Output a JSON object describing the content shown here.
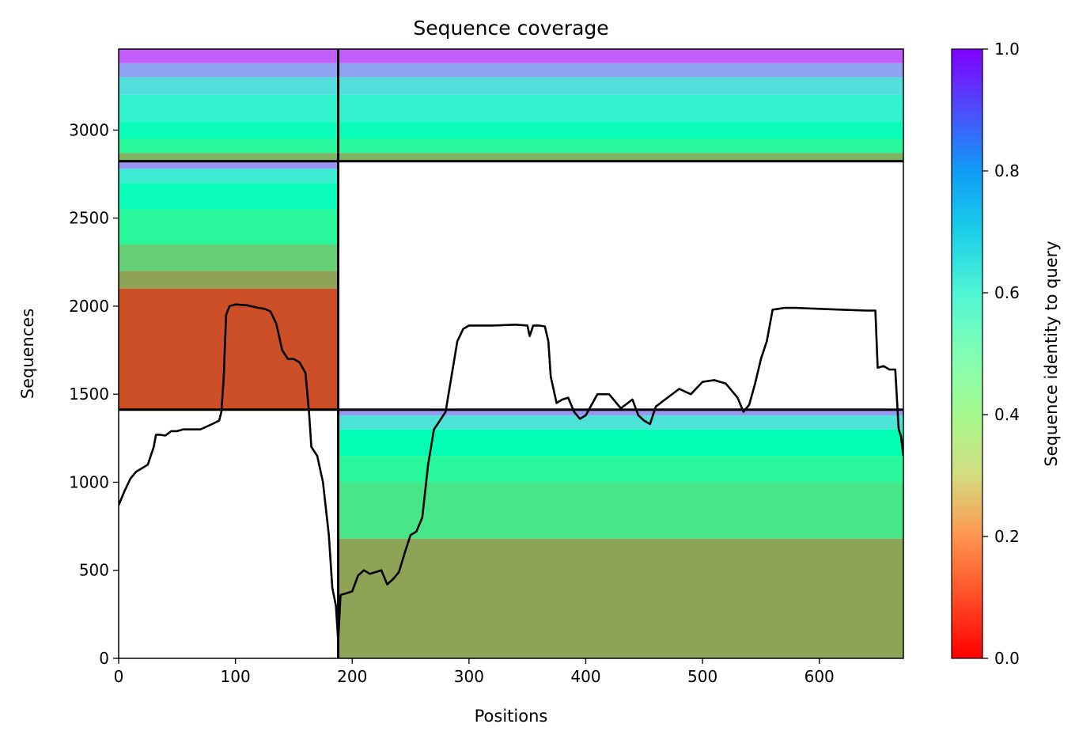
{
  "chart_data": {
    "type": "heatmap",
    "title": "Sequence coverage",
    "xlabel": "Positions",
    "ylabel": "Sequences",
    "xlim": [
      0,
      672
    ],
    "ylim": [
      0,
      3460
    ],
    "x_ticks": [
      0,
      100,
      200,
      300,
      400,
      500,
      600
    ],
    "y_ticks": [
      0,
      500,
      1000,
      1500,
      2000,
      2500,
      3000
    ],
    "colormap": "rainbow_r",
    "colorbar": {
      "label": "Sequence identity to query",
      "range": [
        0.0,
        1.0
      ],
      "ticks": [
        0.0,
        0.2,
        0.4,
        0.6,
        0.8,
        1.0
      ]
    },
    "block_divisions": {
      "x_boundary": 188,
      "y_boundaries": [
        1412,
        2823
      ]
    },
    "blocks": [
      {
        "id": "lower-right",
        "x_range": [
          188,
          672
        ],
        "y_range": [
          0,
          1412
        ],
        "identity_bands": [
          {
            "y_range": [
              0,
              680
            ],
            "identity": 0.22
          },
          {
            "y_range": [
              680,
              1000
            ],
            "identity": 0.36
          },
          {
            "y_range": [
              1000,
              1150
            ],
            "identity": 0.42
          },
          {
            "y_range": [
              1150,
              1300
            ],
            "identity": 0.5
          },
          {
            "y_range": [
              1300,
              1380
            ],
            "identity": 0.65
          },
          {
            "y_range": [
              1380,
              1412
            ],
            "identity": 0.8
          }
        ]
      },
      {
        "id": "middle-left",
        "x_range": [
          0,
          188
        ],
        "y_range": [
          1412,
          2823
        ],
        "identity_bands": [
          {
            "y_range": [
              1412,
              2100
            ],
            "identity": 0.1
          },
          {
            "y_range": [
              2100,
              2200
            ],
            "identity": 0.22
          },
          {
            "y_range": [
              2200,
              2350
            ],
            "identity": 0.3
          },
          {
            "y_range": [
              2350,
              2550
            ],
            "identity": 0.42
          },
          {
            "y_range": [
              2550,
              2700
            ],
            "identity": 0.52
          },
          {
            "y_range": [
              2700,
              2780
            ],
            "identity": 0.62
          },
          {
            "y_range": [
              2780,
              2823
            ],
            "identity": 0.8
          }
        ]
      },
      {
        "id": "upper-both",
        "x_range": [
          0,
          672
        ],
        "y_range": [
          2823,
          3460
        ],
        "identity_bands": [
          {
            "y_range": [
              2823,
              2870
            ],
            "identity": 0.25
          },
          {
            "y_range": [
              2870,
              2950
            ],
            "identity": 0.42
          },
          {
            "y_range": [
              2950,
              3050
            ],
            "identity": 0.52
          },
          {
            "y_range": [
              3050,
              3200
            ],
            "identity": 0.6
          },
          {
            "y_range": [
              3200,
              3300
            ],
            "identity": 0.66
          },
          {
            "y_range": [
              3300,
              3380
            ],
            "identity": 0.78
          },
          {
            "y_range": [
              3380,
              3460
            ],
            "identity": 0.88
          }
        ]
      }
    ],
    "coverage_line": {
      "x": [
        0,
        5,
        10,
        15,
        20,
        25,
        30,
        32,
        35,
        40,
        45,
        50,
        55,
        60,
        70,
        80,
        86,
        88,
        90,
        92,
        95,
        100,
        110,
        120,
        125,
        130,
        135,
        140,
        145,
        150,
        155,
        160,
        163,
        165,
        170,
        175,
        180,
        183,
        186,
        188,
        190,
        195,
        200,
        205,
        210,
        215,
        220,
        225,
        230,
        235,
        240,
        245,
        250,
        255,
        260,
        265,
        270,
        275,
        280,
        285,
        290,
        295,
        300,
        320,
        340,
        350,
        352,
        355,
        360,
        365,
        368,
        370,
        375,
        380,
        385,
        390,
        395,
        400,
        410,
        420,
        430,
        440,
        445,
        450,
        455,
        460,
        470,
        480,
        490,
        500,
        510,
        520,
        530,
        535,
        540,
        545,
        550,
        555,
        560,
        565,
        570,
        580,
        600,
        620,
        640,
        648,
        650,
        655,
        660,
        665,
        668,
        670,
        672
      ],
      "y": [
        870,
        950,
        1020,
        1060,
        1080,
        1100,
        1200,
        1270,
        1270,
        1265,
        1290,
        1290,
        1300,
        1300,
        1300,
        1330,
        1350,
        1400,
        1600,
        1950,
        2000,
        2010,
        2005,
        1990,
        1985,
        1970,
        1900,
        1750,
        1700,
        1700,
        1680,
        1620,
        1400,
        1200,
        1150,
        1000,
        700,
        400,
        300,
        100,
        360,
        370,
        380,
        470,
        500,
        480,
        490,
        500,
        420,
        450,
        490,
        600,
        700,
        720,
        800,
        1100,
        1300,
        1350,
        1400,
        1600,
        1800,
        1870,
        1890,
        1890,
        1895,
        1890,
        1830,
        1890,
        1890,
        1885,
        1800,
        1600,
        1450,
        1470,
        1480,
        1400,
        1360,
        1380,
        1500,
        1500,
        1420,
        1470,
        1380,
        1350,
        1330,
        1430,
        1480,
        1530,
        1500,
        1570,
        1580,
        1560,
        1480,
        1400,
        1440,
        1560,
        1700,
        1800,
        1980,
        1985,
        1990,
        1990,
        1985,
        1980,
        1975,
        1975,
        1650,
        1660,
        1640,
        1640,
        1300,
        1260,
        1150
      ]
    }
  }
}
